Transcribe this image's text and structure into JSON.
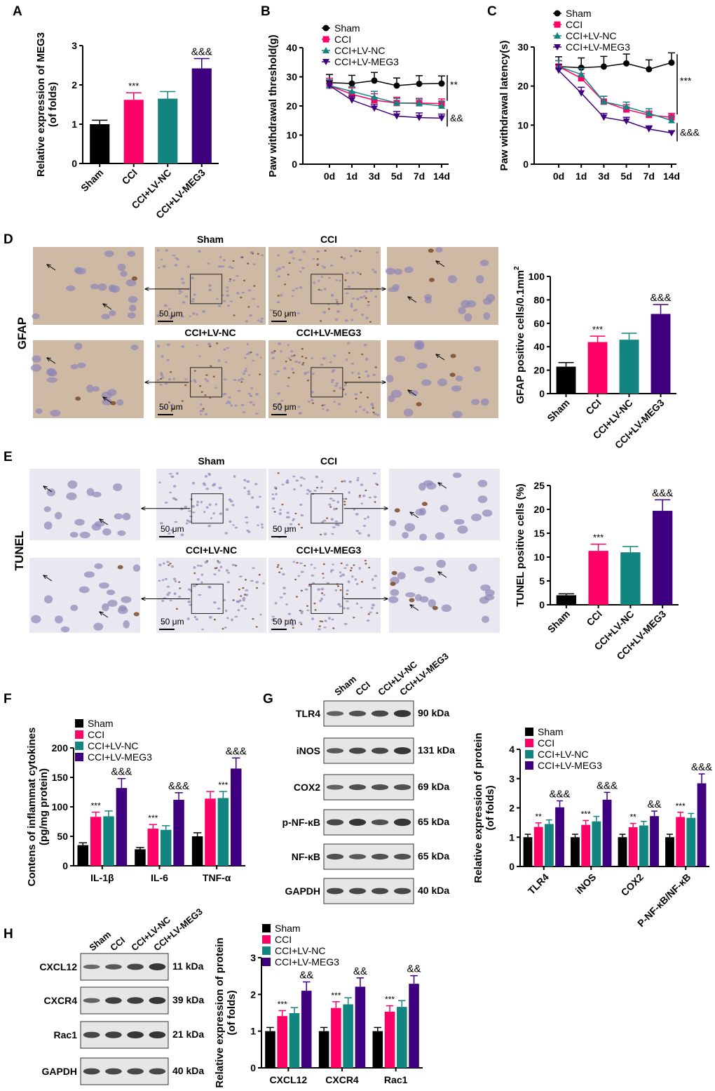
{
  "panel_letters": [
    "A",
    "B",
    "C",
    "D",
    "E",
    "F",
    "G",
    "H"
  ],
  "colors": {
    "sham": "#000000",
    "cci": "#ff0066",
    "nc": "#138580",
    "meg3": "#3f0080",
    "gfap_bg": "#cdb9a4",
    "tunel_bg": "#e9e7ef",
    "nuclei": "#8f86b8",
    "stain": "#7a4a2a"
  },
  "groups": [
    "Sham",
    "CCI",
    "CCI+LV-NC",
    "CCI+LV-MEG3"
  ],
  "micrographs": {
    "gfap_label": "GFAP",
    "tunel_label": "TUNEL",
    "scale_bar": "50 μm",
    "gfap_titles": [
      "Sham",
      "CCI",
      "CCI+LV-NC",
      "CCI+LV-MEG3"
    ],
    "tunel_titles": [
      "Sham",
      "CCI",
      "CCI+LV-NC",
      "CCI+LV-MEG3"
    ]
  },
  "blots": [
    {
      "panel": "G",
      "lanes": [
        "Sham",
        "CCI",
        "CCI+LV-NC",
        "CCI+LV-MEG3"
      ],
      "rows": [
        {
          "name": "TLR4",
          "kda": "90 kDa"
        },
        {
          "name": "iNOS",
          "kda": "131 kDa"
        },
        {
          "name": "COX2",
          "kda": "69 kDa"
        },
        {
          "name": "p-NF-κB",
          "kda": "65 kDa"
        },
        {
          "name": "NF-κB",
          "kda": "65 kDa"
        },
        {
          "name": "GAPDH",
          "kda": "40 kDa"
        }
      ]
    },
    {
      "panel": "H",
      "lanes": [
        "Sham",
        "CCI",
        "CCI+LV-NC",
        "CCI+LV-MEG3"
      ],
      "rows": [
        {
          "name": "CXCL12",
          "kda": "11 kDa"
        },
        {
          "name": "CXCR4",
          "kda": "39 kDa"
        },
        {
          "name": "Rac1",
          "kda": "21 kDa"
        },
        {
          "name": "GAPDH",
          "kda": "40 kDa"
        }
      ]
    }
  ],
  "chart_data": [
    {
      "panel": "A",
      "type": "bar",
      "categories": [
        "Sham",
        "CCI",
        "CCI+LV-NC",
        "CCI+LV-MEG3"
      ],
      "values": [
        1.0,
        1.62,
        1.65,
        2.42
      ],
      "errors": [
        0.1,
        0.18,
        0.18,
        0.25
      ],
      "ylabel": [
        "Relative expression of  MEG3",
        "(of folds)"
      ],
      "ylim": [
        0,
        3
      ],
      "yticks": [
        0,
        1,
        2,
        3
      ],
      "annotations": [
        {
          "category": 1,
          "text": "***"
        },
        {
          "category": 3,
          "text": "&&&"
        }
      ]
    },
    {
      "panel": "B",
      "type": "line",
      "x": [
        "0d",
        "1d",
        "3d",
        "5d",
        "7d",
        "14d"
      ],
      "series": [
        {
          "name": "Sham",
          "values": [
            28,
            27.7,
            28.7,
            27,
            27.6,
            27.7
          ],
          "errors": [
            2.8,
            2.8,
            2.8,
            2.6,
            2.8,
            2.6
          ],
          "marker": "circle"
        },
        {
          "name": "CCI",
          "values": [
            27,
            24,
            22,
            21,
            21,
            20.8
          ],
          "errors": [
            2.5,
            2.2,
            2.2,
            2,
            1.6,
            1.6
          ],
          "marker": "square"
        },
        {
          "name": "CCI+LV-NC",
          "values": [
            27,
            25,
            23,
            21,
            20.8,
            20
          ],
          "errors": [
            2,
            1.6,
            2,
            1.6,
            1.6,
            1.6
          ],
          "marker": "triangle-up"
        },
        {
          "name": "CCI+LV-MEG3",
          "values": [
            27,
            22,
            19.2,
            16.5,
            16,
            15.8
          ],
          "errors": [
            1.6,
            1.4,
            1.4,
            1.6,
            1.6,
            1.4
          ],
          "marker": "triangle-down"
        }
      ],
      "ylabel": [
        "Paw withdrawal threshold(g)"
      ],
      "ylim": [
        0,
        40
      ],
      "yticks": [
        0,
        10,
        20,
        30,
        40
      ],
      "legend": "top",
      "significance": [
        {
          "text": "**",
          "between": [
            "Sham",
            "CCI"
          ]
        },
        {
          "text": "&&",
          "between": [
            "CCI",
            "CCI+LV-MEG3"
          ]
        }
      ]
    },
    {
      "panel": "C",
      "type": "line",
      "x": [
        "0d",
        "1d",
        "3d",
        "5d",
        "7d",
        "14d"
      ],
      "series": [
        {
          "name": "Sham",
          "values": [
            25,
            24.7,
            25,
            25.8,
            24.3,
            26
          ],
          "errors": [
            2.5,
            2.5,
            2.6,
            2.4,
            2.4,
            2.5
          ],
          "marker": "circle"
        },
        {
          "name": "CCI",
          "values": [
            25,
            22,
            16,
            14,
            12.6,
            12
          ],
          "errors": [
            1.5,
            1.2,
            1.4,
            1.2,
            1,
            1
          ],
          "marker": "square"
        },
        {
          "name": "CCI+LV-NC",
          "values": [
            25,
            23,
            16,
            14.7,
            13,
            11.2
          ],
          "errors": [
            1.5,
            1.5,
            1.4,
            1.2,
            1.2,
            1
          ],
          "marker": "triangle-up"
        },
        {
          "name": "CCI+LV-MEG3",
          "values": [
            24,
            18.2,
            12,
            11,
            9,
            8
          ],
          "errors": [
            1.5,
            1.5,
            1,
            1,
            0.8,
            0.5
          ],
          "marker": "triangle-down"
        }
      ],
      "ylabel": [
        "Paw withdrawal latency(s)"
      ],
      "ylim": [
        0,
        30
      ],
      "yticks": [
        0,
        10,
        20,
        30
      ],
      "legend": "top",
      "significance": [
        {
          "text": "***",
          "between": [
            "Sham",
            "CCI"
          ]
        },
        {
          "text": "&&&",
          "between": [
            "CCI",
            "CCI+LV-MEG3"
          ]
        }
      ]
    },
    {
      "panel": "D",
      "type": "bar",
      "categories": [
        "Sham",
        "CCI",
        "CCI+LV-NC",
        "CCI+LV-MEG3"
      ],
      "values": [
        23,
        44,
        46,
        68
      ],
      "errors": [
        3.5,
        5,
        5.5,
        8
      ],
      "ylabel": [
        "GFAP positive cells/0.1mm"
      ],
      "ylabel_sup": "2",
      "ylim": [
        0,
        100
      ],
      "yticks": [
        0,
        20,
        40,
        60,
        80,
        100
      ],
      "annotations": [
        {
          "category": 1,
          "text": "***"
        },
        {
          "category": 3,
          "text": "&&&"
        }
      ]
    },
    {
      "panel": "E",
      "type": "bar",
      "categories": [
        "Sham",
        "CCI",
        "CCI+LV-NC",
        "CCI+LV-MEG3"
      ],
      "values": [
        2,
        11.3,
        11,
        19.7
      ],
      "errors": [
        0.3,
        1.4,
        1.2,
        2.3
      ],
      "ylabel": [
        "TUNEL positive cells (%)"
      ],
      "ylim": [
        0,
        25
      ],
      "yticks": [
        0,
        5,
        10,
        15,
        20,
        25
      ],
      "annotations": [
        {
          "category": 1,
          "text": "***"
        },
        {
          "category": 3,
          "text": "&&&"
        }
      ]
    },
    {
      "panel": "F",
      "type": "bar",
      "categories": [
        "IL-1β",
        "IL-6",
        "TNF-α"
      ],
      "series": [
        {
          "name": "Sham",
          "values": [
            35,
            28,
            50
          ],
          "errors": [
            4,
            3,
            6
          ]
        },
        {
          "name": "CCI",
          "values": [
            83,
            63,
            114
          ],
          "errors": [
            8,
            7,
            12
          ]
        },
        {
          "name": "CCI+LV-NC",
          "values": [
            84,
            61,
            115
          ],
          "errors": [
            9,
            7,
            11
          ]
        },
        {
          "name": "CCI+LV-MEG3",
          "values": [
            132,
            112,
            165
          ],
          "errors": [
            16,
            12,
            18
          ]
        }
      ],
      "ylabel": [
        "Contens of inflammat cytokines",
        "(pg/mg protein)"
      ],
      "ylim": [
        0,
        200
      ],
      "yticks": [
        0,
        50,
        100,
        150,
        200
      ],
      "legend": "top-left",
      "annotations": [
        {
          "category": 0,
          "series": 1,
          "text": "***"
        },
        {
          "category": 0,
          "series": 3,
          "text": "&&&"
        },
        {
          "category": 1,
          "series": 1,
          "text": "***"
        },
        {
          "category": 1,
          "series": 3,
          "text": "&&&"
        },
        {
          "category": 2,
          "series": 2,
          "text": "***"
        },
        {
          "category": 2,
          "series": 3,
          "text": "&&&"
        }
      ]
    },
    {
      "panel": "G",
      "type": "bar",
      "categories": [
        "TLR4",
        "iNOS",
        "COX2",
        "P-NF-κB/NF-κB"
      ],
      "series": [
        {
          "name": "Sham",
          "values": [
            1,
            1,
            1,
            1
          ],
          "errors": [
            0.1,
            0.1,
            0.1,
            0.1
          ]
        },
        {
          "name": "CCI",
          "values": [
            1.35,
            1.42,
            1.34,
            1.69
          ],
          "errors": [
            0.14,
            0.15,
            0.13,
            0.16
          ]
        },
        {
          "name": "CCI+LV-NC",
          "values": [
            1.45,
            1.54,
            1.4,
            1.66
          ],
          "errors": [
            0.14,
            0.17,
            0.14,
            0.15
          ]
        },
        {
          "name": "CCI+LV-MEG3",
          "values": [
            2.02,
            2.28,
            1.72,
            2.84
          ],
          "errors": [
            0.22,
            0.25,
            0.17,
            0.32
          ]
        }
      ],
      "ylabel": [
        "Relative expression of  protein",
        "(of folds)"
      ],
      "ylim": [
        0,
        4
      ],
      "yticks": [
        0,
        1,
        2,
        3,
        4
      ],
      "legend": "top-left",
      "annotations": [
        {
          "category": 0,
          "series": 1,
          "text": "**"
        },
        {
          "category": 0,
          "series": 3,
          "text": "&&&"
        },
        {
          "category": 1,
          "series": 1,
          "text": "***"
        },
        {
          "category": 1,
          "series": 3,
          "text": "&&&"
        },
        {
          "category": 2,
          "series": 1,
          "text": "**"
        },
        {
          "category": 2,
          "series": 3,
          "text": "&&"
        },
        {
          "category": 3,
          "series": 1,
          "text": "***"
        },
        {
          "category": 3,
          "series": 3,
          "text": "&&&"
        }
      ]
    },
    {
      "panel": "H",
      "type": "bar",
      "categories": [
        "CXCL12",
        "CXCR4",
        "Rac1"
      ],
      "series": [
        {
          "name": "Sham",
          "values": [
            1,
            1,
            1
          ],
          "errors": [
            0.1,
            0.1,
            0.1
          ]
        },
        {
          "name": "CCI",
          "values": [
            1.41,
            1.63,
            1.53
          ],
          "errors": [
            0.15,
            0.17,
            0.16
          ]
        },
        {
          "name": "CCI+LV-NC",
          "values": [
            1.49,
            1.73,
            1.66
          ],
          "errors": [
            0.15,
            0.18,
            0.17
          ]
        },
        {
          "name": "CCI+LV-MEG3",
          "values": [
            2.1,
            2.21,
            2.29
          ],
          "errors": [
            0.24,
            0.24,
            0.22
          ]
        }
      ],
      "ylabel": [
        "Relative expression of  protein",
        "(of folds)"
      ],
      "ylim": [
        0,
        3
      ],
      "yticks": [
        0,
        1,
        2,
        3
      ],
      "legend": "top-left",
      "annotations": [
        {
          "category": 0,
          "series": 1,
          "text": "***"
        },
        {
          "category": 0,
          "series": 3,
          "text": "&&"
        },
        {
          "category": 1,
          "series": 1,
          "text": "***"
        },
        {
          "category": 1,
          "series": 3,
          "text": "&&"
        },
        {
          "category": 2,
          "series": 1,
          "text": "***"
        },
        {
          "category": 2,
          "series": 3,
          "text": "&&"
        }
      ]
    }
  ]
}
